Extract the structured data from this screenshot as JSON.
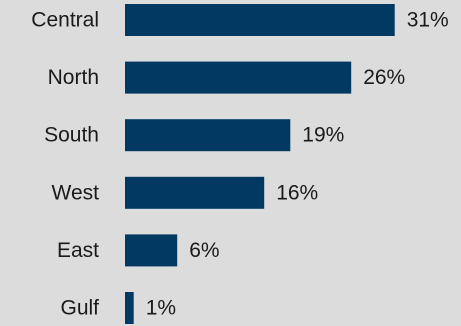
{
  "chart_data": {
    "type": "bar",
    "orientation": "horizontal",
    "categories": [
      "Central",
      "North",
      "South",
      "West",
      "East",
      "Gulf"
    ],
    "values": [
      31,
      26,
      19,
      16,
      6,
      1
    ],
    "value_suffix": "%",
    "data_labels": [
      "31%",
      "26%",
      "19%",
      "16%",
      "6%",
      "1%"
    ],
    "bar_color": "#003a63",
    "background_color": "#dcdcdc",
    "title": "",
    "xlabel": "",
    "ylabel": "",
    "grid": false,
    "legend": "none"
  }
}
